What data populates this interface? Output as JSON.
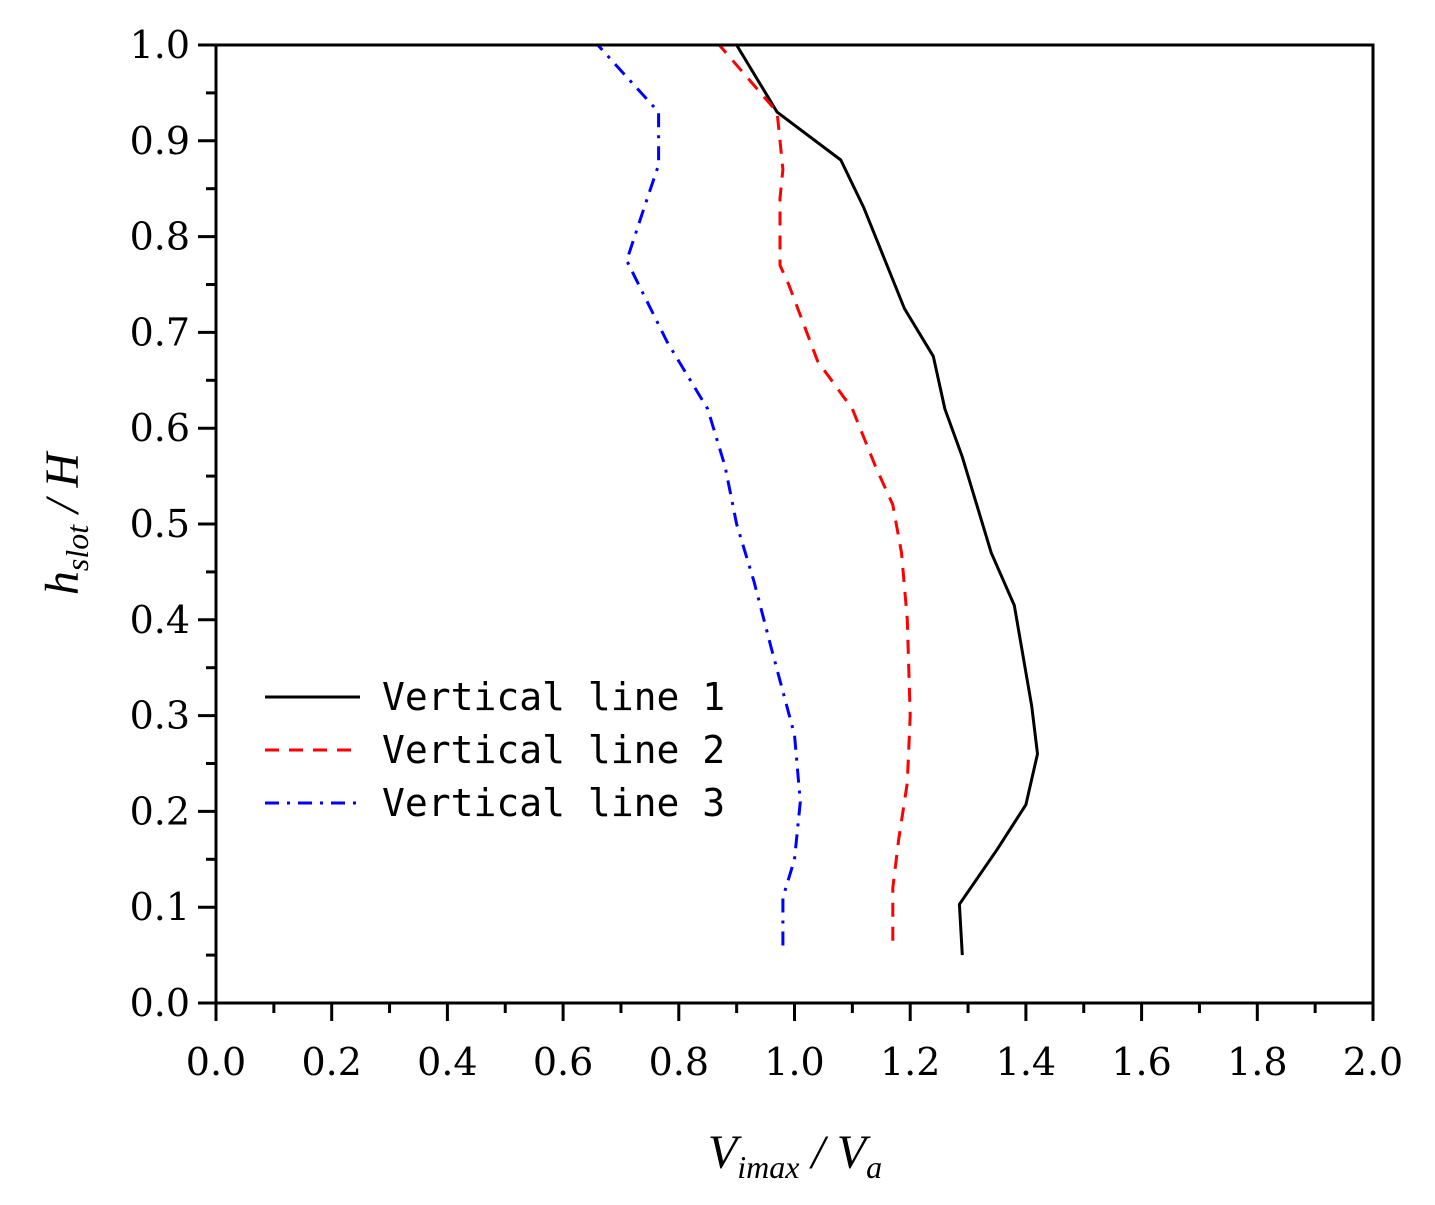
{
  "chart_data": {
    "type": "line",
    "title": "",
    "xlabel": {
      "main": "V",
      "sub": "imax",
      "sep": " / ",
      "main2": "V",
      "sub2": "a"
    },
    "ylabel": {
      "main": "h",
      "sub": "slot",
      "sep": " / ",
      "main2": "H"
    },
    "xlim": [
      0.0,
      2.0
    ],
    "ylim": [
      0.0,
      1.0
    ],
    "x_major_ticks": [
      "0.0",
      "0.2",
      "0.4",
      "0.6",
      "0.8",
      "1.0",
      "1.2",
      "1.4",
      "1.6",
      "1.8",
      "2.0"
    ],
    "y_major_ticks": [
      "0.0",
      "0.1",
      "0.2",
      "0.3",
      "0.4",
      "0.5",
      "0.6",
      "0.7",
      "0.8",
      "0.9",
      "1.0"
    ],
    "legend_position": "lower-left",
    "series": [
      {
        "name": "Vertical line 1",
        "color": "#000000",
        "style": "solid",
        "points": [
          [
            1.29,
            0.05
          ],
          [
            1.285,
            0.103
          ],
          [
            1.35,
            0.16
          ],
          [
            1.4,
            0.207
          ],
          [
            1.42,
            0.26
          ],
          [
            1.41,
            0.31
          ],
          [
            1.38,
            0.415
          ],
          [
            1.34,
            0.47
          ],
          [
            1.29,
            0.57
          ],
          [
            1.26,
            0.62
          ],
          [
            1.24,
            0.675
          ],
          [
            1.19,
            0.725
          ],
          [
            1.12,
            0.83
          ],
          [
            1.08,
            0.88
          ],
          [
            0.97,
            0.93
          ],
          [
            0.9,
            1.0
          ]
        ]
      },
      {
        "name": "Vertical line 2",
        "color": "#ff0000",
        "style": "dashed",
        "points": [
          [
            1.17,
            0.065
          ],
          [
            1.17,
            0.12
          ],
          [
            1.18,
            0.17
          ],
          [
            1.195,
            0.23
          ],
          [
            1.2,
            0.3
          ],
          [
            1.195,
            0.4
          ],
          [
            1.185,
            0.47
          ],
          [
            1.17,
            0.52
          ],
          [
            1.14,
            0.56
          ],
          [
            1.1,
            0.62
          ],
          [
            1.04,
            0.67
          ],
          [
            0.99,
            0.75
          ],
          [
            0.975,
            0.77
          ],
          [
            0.975,
            0.84
          ],
          [
            0.98,
            0.87
          ],
          [
            0.97,
            0.93
          ],
          [
            0.87,
            1.0
          ]
        ]
      },
      {
        "name": "Vertical line 3",
        "color": "#0000ff",
        "style": "dashdot",
        "points": [
          [
            0.98,
            0.06
          ],
          [
            0.98,
            0.11
          ],
          [
            1.0,
            0.15
          ],
          [
            1.01,
            0.21
          ],
          [
            1.0,
            0.28
          ],
          [
            0.96,
            0.37
          ],
          [
            0.93,
            0.44
          ],
          [
            0.9,
            0.5
          ],
          [
            0.88,
            0.56
          ],
          [
            0.85,
            0.62
          ],
          [
            0.78,
            0.69
          ],
          [
            0.71,
            0.775
          ],
          [
            0.74,
            0.83
          ],
          [
            0.765,
            0.875
          ],
          [
            0.765,
            0.93
          ],
          [
            0.72,
            0.96
          ],
          [
            0.66,
            1.0
          ]
        ]
      }
    ]
  }
}
